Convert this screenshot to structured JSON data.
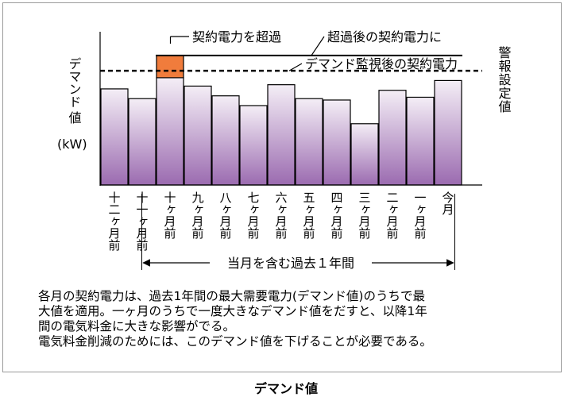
{
  "chart_data": {
    "type": "bar",
    "title": "",
    "categories": [
      "十二ヶ月前",
      "十一ヶ月前",
      "十ヶ月前",
      "九ヶ月前",
      "八ヶ月前",
      "七ヶ月前",
      "六ヶ月前",
      "五ヶ月前",
      "四ヶ月前",
      "三ヶ月前",
      "二ヶ月前",
      "一ヶ月前",
      "今月"
    ],
    "values": [
      69,
      62,
      77,
      71,
      64,
      57,
      72,
      62,
      61,
      44,
      68,
      63,
      75
    ],
    "exceed_segment": {
      "category": "十ヶ月前",
      "from": 77,
      "to": 93,
      "color": "#f07c3c"
    },
    "contract_power_line": {
      "value": 93,
      "label": "超過後の契約電力に"
    },
    "alarm_line": {
      "value": 82,
      "label": "デマンド監視後の契約電力",
      "style": "dashed"
    },
    "exceed_label": "契約電力を超過",
    "ylabel": [
      "デマンド",
      "値",
      "(kW)"
    ],
    "right_label": "警報設定値",
    "period_label": "当月を含む過去１年間",
    "ylim": [
      0,
      110
    ],
    "bar_gradient": [
      "#f4eef6",
      "#9b6bb0"
    ]
  },
  "notes": [
    "各月の契約電力は、過去1年間の最大需要電力(デマンド値)のうちで最",
    "大値を適用。一ヶ月のうちで一度大きなデマンド値をだすと、以降1年",
    "間の電気料金に大きな影響がでる。",
    "電気料金削減のためには、このデマンド値を下げることが必要である。"
  ],
  "caption": "デマンド値"
}
